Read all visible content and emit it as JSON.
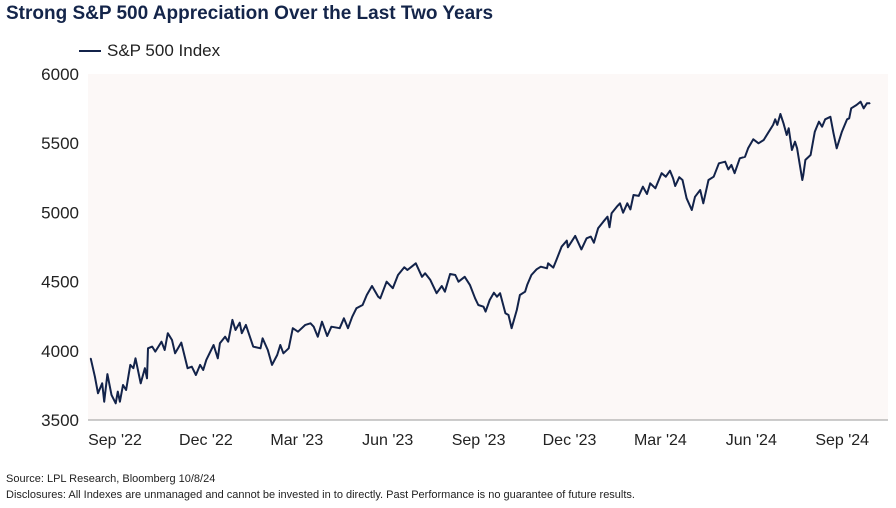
{
  "chart_data": {
    "type": "line",
    "title": "Strong S&P 500 Appreciation Over the Last Two Years",
    "xlabel": "",
    "ylabel": "",
    "ylim": [
      3500,
      6000
    ],
    "yticks": [
      "6000",
      "5500",
      "5000",
      "4500",
      "4000",
      "3500"
    ],
    "xticks": [
      "Sep '22",
      "Dec '22",
      "Mar '23",
      "Jun '23",
      "Sep '23",
      "Dec '23",
      "Mar '24",
      "Jun '24",
      "Sep '24"
    ],
    "grid": false,
    "legend_position": "top-left",
    "plot_background": "#fcf8f7",
    "series": [
      {
        "name": "S&P 500 Index",
        "color": "#13234a",
        "points": [
          [
            "2022-09-17",
            3946
          ],
          [
            "2022-09-21",
            3813
          ],
          [
            "2022-09-24",
            3693
          ],
          [
            "2022-09-28",
            3765
          ],
          [
            "2022-09-30",
            3632
          ],
          [
            "2022-10-03",
            3832
          ],
          [
            "2022-10-07",
            3681
          ],
          [
            "2022-10-11",
            3621
          ],
          [
            "2022-10-13",
            3705
          ],
          [
            "2022-10-15",
            3632
          ],
          [
            "2022-10-18",
            3753
          ],
          [
            "2022-10-21",
            3717
          ],
          [
            "2022-10-25",
            3898
          ],
          [
            "2022-10-28",
            3874
          ],
          [
            "2022-10-30",
            3946
          ],
          [
            "2022-11-04",
            3765
          ],
          [
            "2022-11-08",
            3874
          ],
          [
            "2022-11-10",
            3801
          ],
          [
            "2022-11-11",
            4018
          ],
          [
            "2022-11-15",
            4030
          ],
          [
            "2022-11-18",
            3994
          ],
          [
            "2022-11-24",
            4066
          ],
          [
            "2022-11-27",
            4006
          ],
          [
            "2022-11-30",
            4127
          ],
          [
            "2022-12-04",
            4078
          ],
          [
            "2022-12-07",
            3982
          ],
          [
            "2022-12-13",
            4059
          ],
          [
            "2022-12-19",
            3874
          ],
          [
            "2022-12-23",
            3885
          ],
          [
            "2022-12-27",
            3825
          ],
          [
            "2022-12-31",
            3898
          ],
          [
            "2023-01-03",
            3861
          ],
          [
            "2023-01-06",
            3934
          ],
          [
            "2023-01-13",
            4042
          ],
          [
            "2023-01-17",
            3946
          ],
          [
            "2023-01-19",
            4054
          ],
          [
            "2023-01-24",
            4102
          ],
          [
            "2023-01-27",
            4066
          ],
          [
            "2023-01-31",
            4223
          ],
          [
            "2023-02-03",
            4150
          ],
          [
            "2023-02-07",
            4203
          ],
          [
            "2023-02-09",
            4127
          ],
          [
            "2023-02-13",
            4187
          ],
          [
            "2023-02-20",
            4030
          ],
          [
            "2023-02-27",
            4018
          ],
          [
            "2023-03-01",
            4090
          ],
          [
            "2023-03-06",
            4006
          ],
          [
            "2023-03-10",
            3898
          ],
          [
            "2023-03-15",
            3970
          ],
          [
            "2023-03-18",
            4042
          ],
          [
            "2023-03-21",
            3982
          ],
          [
            "2023-03-26",
            4018
          ],
          [
            "2023-03-30",
            4163
          ],
          [
            "2023-04-04",
            4138
          ],
          [
            "2023-04-11",
            4187
          ],
          [
            "2023-04-16",
            4199
          ],
          [
            "2023-04-19",
            4174
          ],
          [
            "2023-04-23",
            4102
          ],
          [
            "2023-04-27",
            4210
          ],
          [
            "2023-05-02",
            4107
          ],
          [
            "2023-05-06",
            4174
          ],
          [
            "2023-05-14",
            4163
          ],
          [
            "2023-05-18",
            4235
          ],
          [
            "2023-05-22",
            4163
          ],
          [
            "2023-05-26",
            4246
          ],
          [
            "2023-05-30",
            4307
          ],
          [
            "2023-06-05",
            4331
          ],
          [
            "2023-06-09",
            4403
          ],
          [
            "2023-06-14",
            4468
          ],
          [
            "2023-06-20",
            4391
          ],
          [
            "2023-06-22",
            4379
          ],
          [
            "2023-06-28",
            4499
          ],
          [
            "2023-07-04",
            4452
          ],
          [
            "2023-07-09",
            4548
          ],
          [
            "2023-07-15",
            4603
          ],
          [
            "2023-07-18",
            4584
          ],
          [
            "2023-07-22",
            4608
          ],
          [
            "2023-07-26",
            4632
          ],
          [
            "2023-08-01",
            4535
          ],
          [
            "2023-08-04",
            4560
          ],
          [
            "2023-08-09",
            4512
          ],
          [
            "2023-08-15",
            4416
          ],
          [
            "2023-08-20",
            4468
          ],
          [
            "2023-08-23",
            4427
          ],
          [
            "2023-08-28",
            4555
          ],
          [
            "2023-09-02",
            4548
          ],
          [
            "2023-09-05",
            4499
          ],
          [
            "2023-09-11",
            4535
          ],
          [
            "2023-09-16",
            4476
          ],
          [
            "2023-09-21",
            4379
          ],
          [
            "2023-09-24",
            4331
          ],
          [
            "2023-09-29",
            4319
          ],
          [
            "2023-10-01",
            4283
          ],
          [
            "2023-10-05",
            4367
          ],
          [
            "2023-10-09",
            4420
          ],
          [
            "2023-10-12",
            4391
          ],
          [
            "2023-10-15",
            4416
          ],
          [
            "2023-10-20",
            4271
          ],
          [
            "2023-10-23",
            4259
          ],
          [
            "2023-10-26",
            4163
          ],
          [
            "2023-10-31",
            4295
          ],
          [
            "2023-11-03",
            4403
          ],
          [
            "2023-11-08",
            4427
          ],
          [
            "2023-11-10",
            4476
          ],
          [
            "2023-11-14",
            4548
          ],
          [
            "2023-11-19",
            4589
          ],
          [
            "2023-11-23",
            4608
          ],
          [
            "2023-11-29",
            4596
          ],
          [
            "2023-11-30",
            4632
          ],
          [
            "2023-12-05",
            4601
          ],
          [
            "2023-12-08",
            4656
          ],
          [
            "2023-12-13",
            4752
          ],
          [
            "2023-12-18",
            4796
          ],
          [
            "2023-12-19",
            4748
          ],
          [
            "2023-12-26",
            4830
          ],
          [
            "2024-01-01",
            4733
          ],
          [
            "2024-01-06",
            4813
          ],
          [
            "2024-01-10",
            4825
          ],
          [
            "2024-01-13",
            4781
          ],
          [
            "2024-01-17",
            4885
          ],
          [
            "2024-01-22",
            4933
          ],
          [
            "2024-01-26",
            4969
          ],
          [
            "2024-01-28",
            4892
          ],
          [
            "2024-01-30",
            4994
          ],
          [
            "2024-02-04",
            5041
          ],
          [
            "2024-02-07",
            5066
          ],
          [
            "2024-02-10",
            4998
          ],
          [
            "2024-02-14",
            5066
          ],
          [
            "2024-02-17",
            5022
          ],
          [
            "2024-02-20",
            5126
          ],
          [
            "2024-02-25",
            5119
          ],
          [
            "2024-02-29",
            5186
          ],
          [
            "2024-03-04",
            5133
          ],
          [
            "2024-03-07",
            5210
          ],
          [
            "2024-03-12",
            5174
          ],
          [
            "2024-03-18",
            5283
          ],
          [
            "2024-03-22",
            5258
          ],
          [
            "2024-03-26",
            5301
          ],
          [
            "2024-03-29",
            5246
          ],
          [
            "2024-03-31",
            5191
          ],
          [
            "2024-04-04",
            5254
          ],
          [
            "2024-04-07",
            5234
          ],
          [
            "2024-04-11",
            5102
          ],
          [
            "2024-04-16",
            5017
          ],
          [
            "2024-04-19",
            5113
          ],
          [
            "2024-04-24",
            5162
          ],
          [
            "2024-04-27",
            5066
          ],
          [
            "2024-05-02",
            5234
          ],
          [
            "2024-05-07",
            5258
          ],
          [
            "2024-05-12",
            5355
          ],
          [
            "2024-05-18",
            5366
          ],
          [
            "2024-05-21",
            5311
          ],
          [
            "2024-05-24",
            5343
          ],
          [
            "2024-05-27",
            5283
          ],
          [
            "2024-06-01",
            5391
          ],
          [
            "2024-06-06",
            5402
          ],
          [
            "2024-06-09",
            5463
          ],
          [
            "2024-06-14",
            5528
          ],
          [
            "2024-06-19",
            5499
          ],
          [
            "2024-06-24",
            5523
          ],
          [
            "2024-06-28",
            5572
          ],
          [
            "2024-07-03",
            5632
          ],
          [
            "2024-07-05",
            5673
          ],
          [
            "2024-07-07",
            5632
          ],
          [
            "2024-07-10",
            5711
          ],
          [
            "2024-07-13",
            5644
          ],
          [
            "2024-07-16",
            5559
          ],
          [
            "2024-07-18",
            5608
          ],
          [
            "2024-07-21",
            5451
          ],
          [
            "2024-07-24",
            5511
          ],
          [
            "2024-07-26",
            5463
          ],
          [
            "2024-07-31",
            5234
          ],
          [
            "2024-08-01",
            5270
          ],
          [
            "2024-08-03",
            5379
          ],
          [
            "2024-08-08",
            5415
          ],
          [
            "2024-08-12",
            5583
          ],
          [
            "2024-08-16",
            5655
          ],
          [
            "2024-08-19",
            5619
          ],
          [
            "2024-08-22",
            5673
          ],
          [
            "2024-08-27",
            5691
          ],
          [
            "2024-08-30",
            5572
          ],
          [
            "2024-09-02",
            5463
          ],
          [
            "2024-09-07",
            5583
          ],
          [
            "2024-09-12",
            5673
          ],
          [
            "2024-09-14",
            5680
          ],
          [
            "2024-09-16",
            5752
          ],
          [
            "2024-09-21",
            5776
          ],
          [
            "2024-09-25",
            5800
          ],
          [
            "2024-09-28",
            5752
          ],
          [
            "2024-10-01",
            5788
          ],
          [
            "2024-10-04",
            5788
          ]
        ]
      }
    ]
  },
  "footer": {
    "source": "Source: LPL Research, Bloomberg 10/8/24",
    "disclosure": "Disclosures: All Indexes are unmanaged and cannot be invested in to directly. Past Performance is no guarantee of future results."
  }
}
